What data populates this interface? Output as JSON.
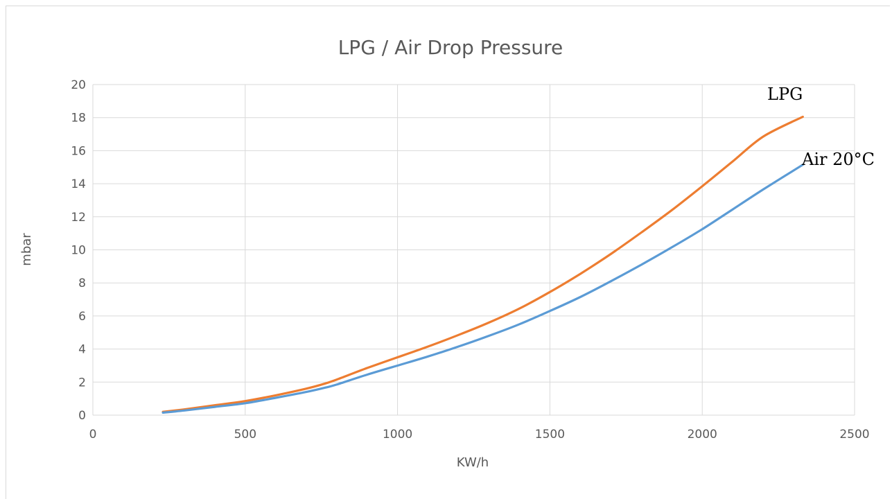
{
  "chart_data": {
    "type": "line",
    "title": "LPG / Air Drop Pressure",
    "xlabel": "KW/h",
    "ylabel": "mbar",
    "xlim": [
      0,
      2500
    ],
    "ylim": [
      0,
      20
    ],
    "x_ticks": [
      "0",
      "500",
      "1000",
      "1500",
      "2000",
      "2500"
    ],
    "y_ticks": [
      "0",
      "2",
      "4",
      "6",
      "8",
      "10",
      "12",
      "14",
      "16",
      "18",
      "20"
    ],
    "grid": true,
    "legend": "none",
    "series": [
      {
        "name": "LPG",
        "color": "#ed7d31",
        "x": [
          230,
          300,
          400,
          500,
          600,
          700,
          760,
          800,
          900,
          1000,
          1100,
          1200,
          1300,
          1400,
          1500,
          1600,
          1700,
          1800,
          1900,
          2000,
          2100,
          2200,
          2330
        ],
        "y": [
          0.2,
          0.35,
          0.6,
          0.85,
          1.2,
          1.6,
          1.9,
          2.15,
          2.85,
          3.5,
          4.15,
          4.85,
          5.6,
          6.45,
          7.45,
          8.55,
          9.75,
          11.05,
          12.4,
          13.85,
          15.35,
          16.85,
          18.05
        ]
      },
      {
        "name": "Air 20°C",
        "color": "#5b9bd5",
        "x": [
          230,
          300,
          400,
          500,
          600,
          700,
          760,
          800,
          900,
          1000,
          1100,
          1200,
          1300,
          1400,
          1500,
          1600,
          1700,
          1800,
          1900,
          2000,
          2100,
          2200,
          2330
        ],
        "y": [
          0.15,
          0.28,
          0.5,
          0.72,
          1.05,
          1.4,
          1.65,
          1.85,
          2.45,
          3.0,
          3.55,
          4.15,
          4.8,
          5.5,
          6.3,
          7.15,
          8.1,
          9.1,
          10.15,
          11.25,
          12.45,
          13.65,
          15.15
        ]
      }
    ]
  }
}
